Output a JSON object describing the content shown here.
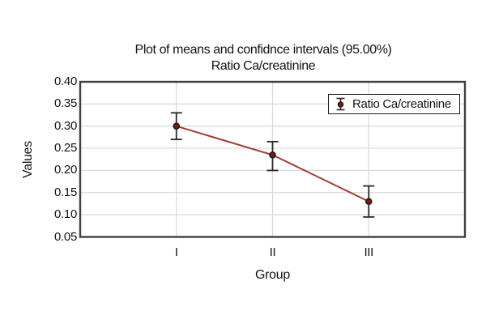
{
  "chart_data": {
    "type": "line",
    "title": "Plot of means and confidnce intervals (95.00%)",
    "subtitle": "Ratio Ca/creatinine",
    "confidence_level": "95.00%",
    "xlabel": "Group",
    "ylabel": "Values",
    "categories": [
      "I",
      "II",
      "III"
    ],
    "series": [
      {
        "name": "Ratio Ca/creatinine",
        "means": [
          0.3,
          0.235,
          0.13
        ],
        "ci_low": [
          0.27,
          0.2,
          0.095
        ],
        "ci_high": [
          0.33,
          0.265,
          0.165
        ]
      }
    ],
    "ylim": [
      0.05,
      0.4
    ],
    "y_ticks": [
      0.4,
      0.35,
      0.3,
      0.25,
      0.2,
      0.15,
      0.1,
      0.05
    ],
    "y_tick_labels": [
      "0.40",
      "0.35",
      "0.30",
      "0.25",
      "0.20",
      "0.15",
      "0.10",
      "0.05"
    ],
    "grid": "horizontal and vertical light gray gridlines",
    "legend": {
      "position": "top-right-inside",
      "entries": [
        "Ratio Ca/creatinine"
      ]
    },
    "colors": {
      "line": "#a23a31",
      "marker_fill": "#7b1a15",
      "marker_stroke": "#1c1c1c",
      "error_bar": "#2a2a2a",
      "gridline": "#d9d9d9",
      "frame": "#3f3f3f",
      "text": "#141414",
      "legend_border": "#1b1b1b",
      "background": "#ffffff"
    }
  }
}
